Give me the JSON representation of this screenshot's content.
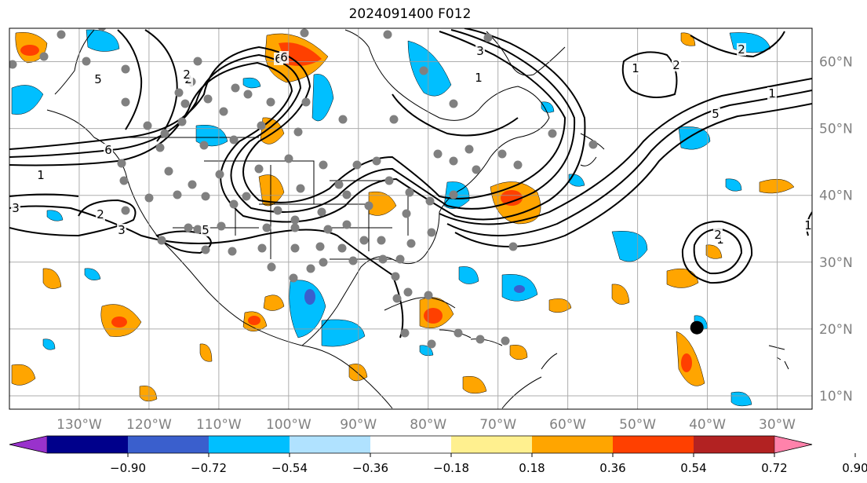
{
  "title": "2024091400 F012",
  "map": {
    "lon_range": [
      -140,
      -25
    ],
    "lat_range": [
      8,
      65
    ],
    "lon_ticks": [
      "130°W",
      "120°W",
      "110°W",
      "100°W",
      "90°W",
      "80°W",
      "70°W",
      "60°W",
      "50°W",
      "40°W",
      "30°W"
    ],
    "lat_ticks": [
      "60°N",
      "50°N",
      "40°N",
      "30°N",
      "20°N",
      "10°N"
    ],
    "grid": true
  },
  "storm_marker": {
    "lon": -41.5,
    "lat": 20.2,
    "label": ""
  },
  "contour_labels": [
    "1",
    "2",
    "3",
    "5",
    "6",
    "1",
    "2",
    "3",
    "5",
    "6",
    "2",
    "1",
    "2",
    "3",
    "1",
    "2",
    "1",
    "2",
    "6",
    "5",
    "1"
  ],
  "colorbar": {
    "ticks": [
      "−0.90",
      "−0.72",
      "−0.54",
      "−0.36",
      "−0.18",
      "0.18",
      "0.36",
      "0.54",
      "0.72",
      "0.90"
    ],
    "colors": [
      "#9932cc",
      "#00008b",
      "#3a5fcd",
      "#00bfff",
      "#b0e2ff",
      "#ffffff",
      "#fff08f",
      "#ffa500",
      "#ff4000",
      "#b22222",
      "#ff82ab"
    ]
  }
}
